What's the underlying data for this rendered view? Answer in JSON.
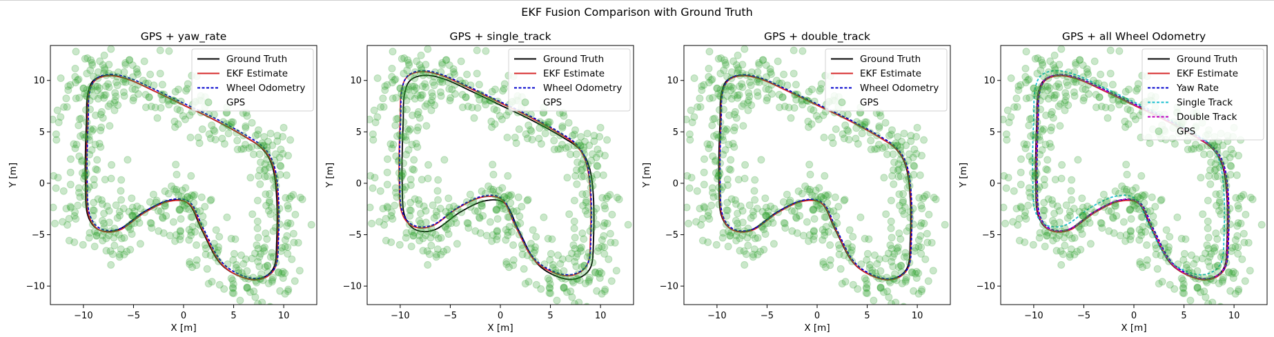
{
  "figure": {
    "title": "EKF Fusion Comparison with Ground Truth"
  },
  "colors": {
    "ground_truth": "#000000",
    "ekf": "#d62728",
    "wheel_odometry": "#0000cc",
    "yaw_rate": "#0000cc",
    "single_track": "#17becf",
    "double_track": "#bf00bf",
    "gps": "#2ca02c"
  },
  "chart_data": [
    {
      "type": "line",
      "title": "GPS + yaw_rate",
      "xlabel": "X [m]",
      "ylabel": "Y [m]",
      "xlim": [
        -13.3,
        13.3
      ],
      "ylim": [
        -11.8,
        13.4
      ],
      "xticks": [
        -10,
        -5,
        0,
        5,
        10
      ],
      "yticks": [
        -10,
        -5,
        0,
        5,
        10
      ],
      "xtick_labels": [
        "−10",
        "−5",
        "0",
        "5",
        "10"
      ],
      "ytick_labels": [
        "−10",
        "−5",
        "0",
        "5",
        "10"
      ],
      "legend_position": "top-right",
      "series": [
        {
          "name": "Ground Truth",
          "style": "solid",
          "color_key": "ground_truth",
          "dx": 0,
          "dy": 0
        },
        {
          "name": "EKF Estimate",
          "style": "solid",
          "color_key": "ekf",
          "dx": 0.12,
          "dy": -0.05
        },
        {
          "name": "Wheel Odometry",
          "style": "dashed",
          "color_key": "wheel_odometry",
          "dx": 0.18,
          "dy": 0.1
        },
        {
          "name": "GPS",
          "style": "scatter",
          "color_key": "gps",
          "seed": 11
        }
      ]
    },
    {
      "type": "line",
      "title": "GPS + single_track",
      "xlabel": "X [m]",
      "ylabel": "Y [m]",
      "xlim": [
        -13.3,
        13.3
      ],
      "ylim": [
        -11.8,
        13.4
      ],
      "xticks": [
        -10,
        -5,
        0,
        5,
        10
      ],
      "yticks": [
        -10,
        -5,
        0,
        5,
        10
      ],
      "xtick_labels": [
        "−10",
        "−5",
        "0",
        "5",
        "10"
      ],
      "ytick_labels": [
        "−10",
        "−5",
        "0",
        "5",
        "10"
      ],
      "legend_position": "top-right",
      "series": [
        {
          "name": "Ground Truth",
          "style": "solid",
          "color_key": "ground_truth",
          "dx": 0,
          "dy": 0
        },
        {
          "name": "EKF Estimate",
          "style": "solid",
          "color_key": "ekf",
          "dx": -0.3,
          "dy": 0.35
        },
        {
          "name": "Wheel Odometry",
          "style": "dashed",
          "color_key": "wheel_odometry",
          "dx": -0.25,
          "dy": 0.45
        },
        {
          "name": "GPS",
          "style": "scatter",
          "color_key": "gps",
          "seed": 11
        }
      ]
    },
    {
      "type": "line",
      "title": "GPS + double_track",
      "xlabel": "X [m]",
      "ylabel": "Y [m]",
      "xlim": [
        -13.3,
        13.3
      ],
      "ylim": [
        -11.8,
        13.4
      ],
      "xticks": [
        -10,
        -5,
        0,
        5,
        10
      ],
      "yticks": [
        -10,
        -5,
        0,
        5,
        10
      ],
      "xtick_labels": [
        "−10",
        "−5",
        "0",
        "5",
        "10"
      ],
      "ytick_labels": [
        "−10",
        "−5",
        "0",
        "5",
        "10"
      ],
      "legend_position": "top-right",
      "series": [
        {
          "name": "Ground Truth",
          "style": "solid",
          "color_key": "ground_truth",
          "dx": 0,
          "dy": 0
        },
        {
          "name": "EKF Estimate",
          "style": "solid",
          "color_key": "ekf",
          "dx": 0.08,
          "dy": -0.05
        },
        {
          "name": "Wheel Odometry",
          "style": "dashed",
          "color_key": "wheel_odometry",
          "dx": 0.12,
          "dy": 0.06
        },
        {
          "name": "GPS",
          "style": "scatter",
          "color_key": "gps",
          "seed": 11
        }
      ]
    },
    {
      "type": "line",
      "title": "GPS + all Wheel Odometry",
      "xlabel": "X [m]",
      "ylabel": "Y [m]",
      "xlim": [
        -13.3,
        13.3
      ],
      "ylim": [
        -11.8,
        13.4
      ],
      "xticks": [
        -10,
        -5,
        0,
        5,
        10
      ],
      "yticks": [
        -10,
        -5,
        0,
        5,
        10
      ],
      "xtick_labels": [
        "−10",
        "−5",
        "0",
        "5",
        "10"
      ],
      "ytick_labels": [
        "−10",
        "−5",
        "0",
        "5",
        "10"
      ],
      "legend_position": "top-right",
      "series": [
        {
          "name": "Ground Truth",
          "style": "solid",
          "color_key": "ground_truth",
          "dx": 0,
          "dy": 0
        },
        {
          "name": "EKF Estimate",
          "style": "solid",
          "color_key": "ekf",
          "dx": 0.1,
          "dy": -0.05
        },
        {
          "name": "Yaw Rate",
          "style": "dashed",
          "color_key": "yaw_rate",
          "dx": 0.15,
          "dy": 0.08
        },
        {
          "name": "Single Track",
          "style": "dashed",
          "color_key": "single_track",
          "dx": -0.3,
          "dy": 0.45
        },
        {
          "name": "Double Track",
          "style": "dashed",
          "color_key": "double_track",
          "dx": 0.05,
          "dy": 0.05
        },
        {
          "name": "GPS",
          "style": "scatter",
          "color_key": "gps",
          "seed": 11
        }
      ]
    }
  ],
  "track": {
    "ground_truth_waypoints": [
      [
        -7.5,
        10.5
      ],
      [
        -5.5,
        10.1
      ],
      [
        -3.0,
        9.0
      ],
      [
        0.0,
        7.6
      ],
      [
        3.0,
        6.2
      ],
      [
        6.0,
        4.6
      ],
      [
        7.9,
        3.3
      ],
      [
        8.9,
        1.5
      ],
      [
        9.3,
        -1.5
      ],
      [
        9.3,
        -5.5
      ],
      [
        9.0,
        -8.2
      ],
      [
        7.5,
        -9.3
      ],
      [
        5.5,
        -9.0
      ],
      [
        3.5,
        -7.6
      ],
      [
        1.8,
        -4.5
      ],
      [
        0.5,
        -2.0
      ],
      [
        -1.5,
        -1.7
      ],
      [
        -4.0,
        -2.8
      ],
      [
        -6.5,
        -4.5
      ],
      [
        -8.5,
        -4.5
      ],
      [
        -9.6,
        -3.0
      ],
      [
        -9.8,
        0.0
      ],
      [
        -9.8,
        3.0
      ],
      [
        -9.7,
        6.0
      ],
      [
        -9.6,
        8.5
      ],
      [
        -9.0,
        10.0
      ]
    ],
    "gps_noise_std": 1.5
  }
}
